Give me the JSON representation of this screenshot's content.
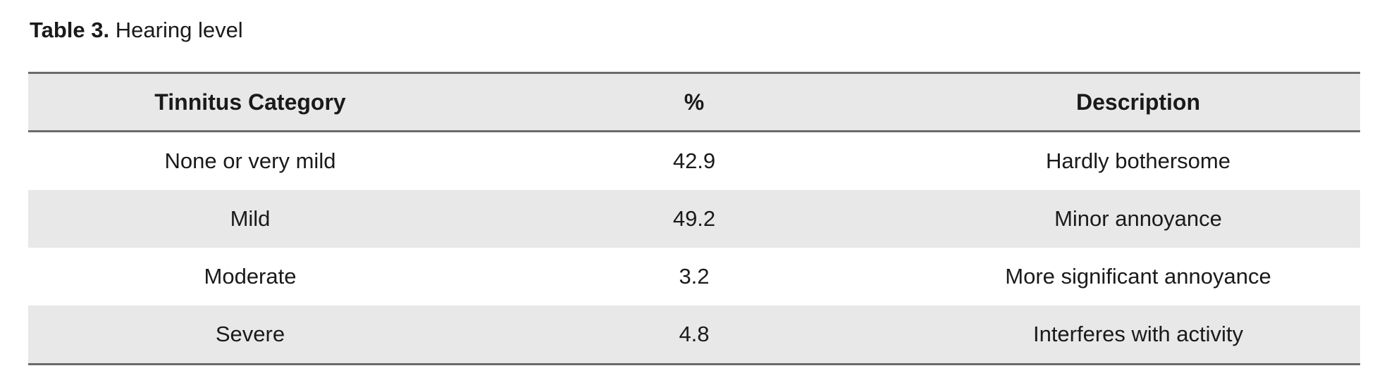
{
  "caption": {
    "number": "Table 3.",
    "text": "Hearing level"
  },
  "table": {
    "columns": [
      "Tinnitus Category",
      "%",
      "Description"
    ],
    "rows": [
      {
        "category": "None or very mild",
        "percent": "42.9",
        "description": "Hardly bothersome"
      },
      {
        "category": "Mild",
        "percent": "49.2",
        "description": "Minor annoyance"
      },
      {
        "category": "Moderate",
        "percent": "3.2",
        "description": "More significant annoyance"
      },
      {
        "category": "Severe",
        "percent": "4.8",
        "description": "Interferes with activity"
      }
    ]
  },
  "colors": {
    "stripe_background": "#e9e8e8",
    "rule": "#6b6b6b",
    "text": "#1a1a1a",
    "page_background": "#ffffff"
  }
}
